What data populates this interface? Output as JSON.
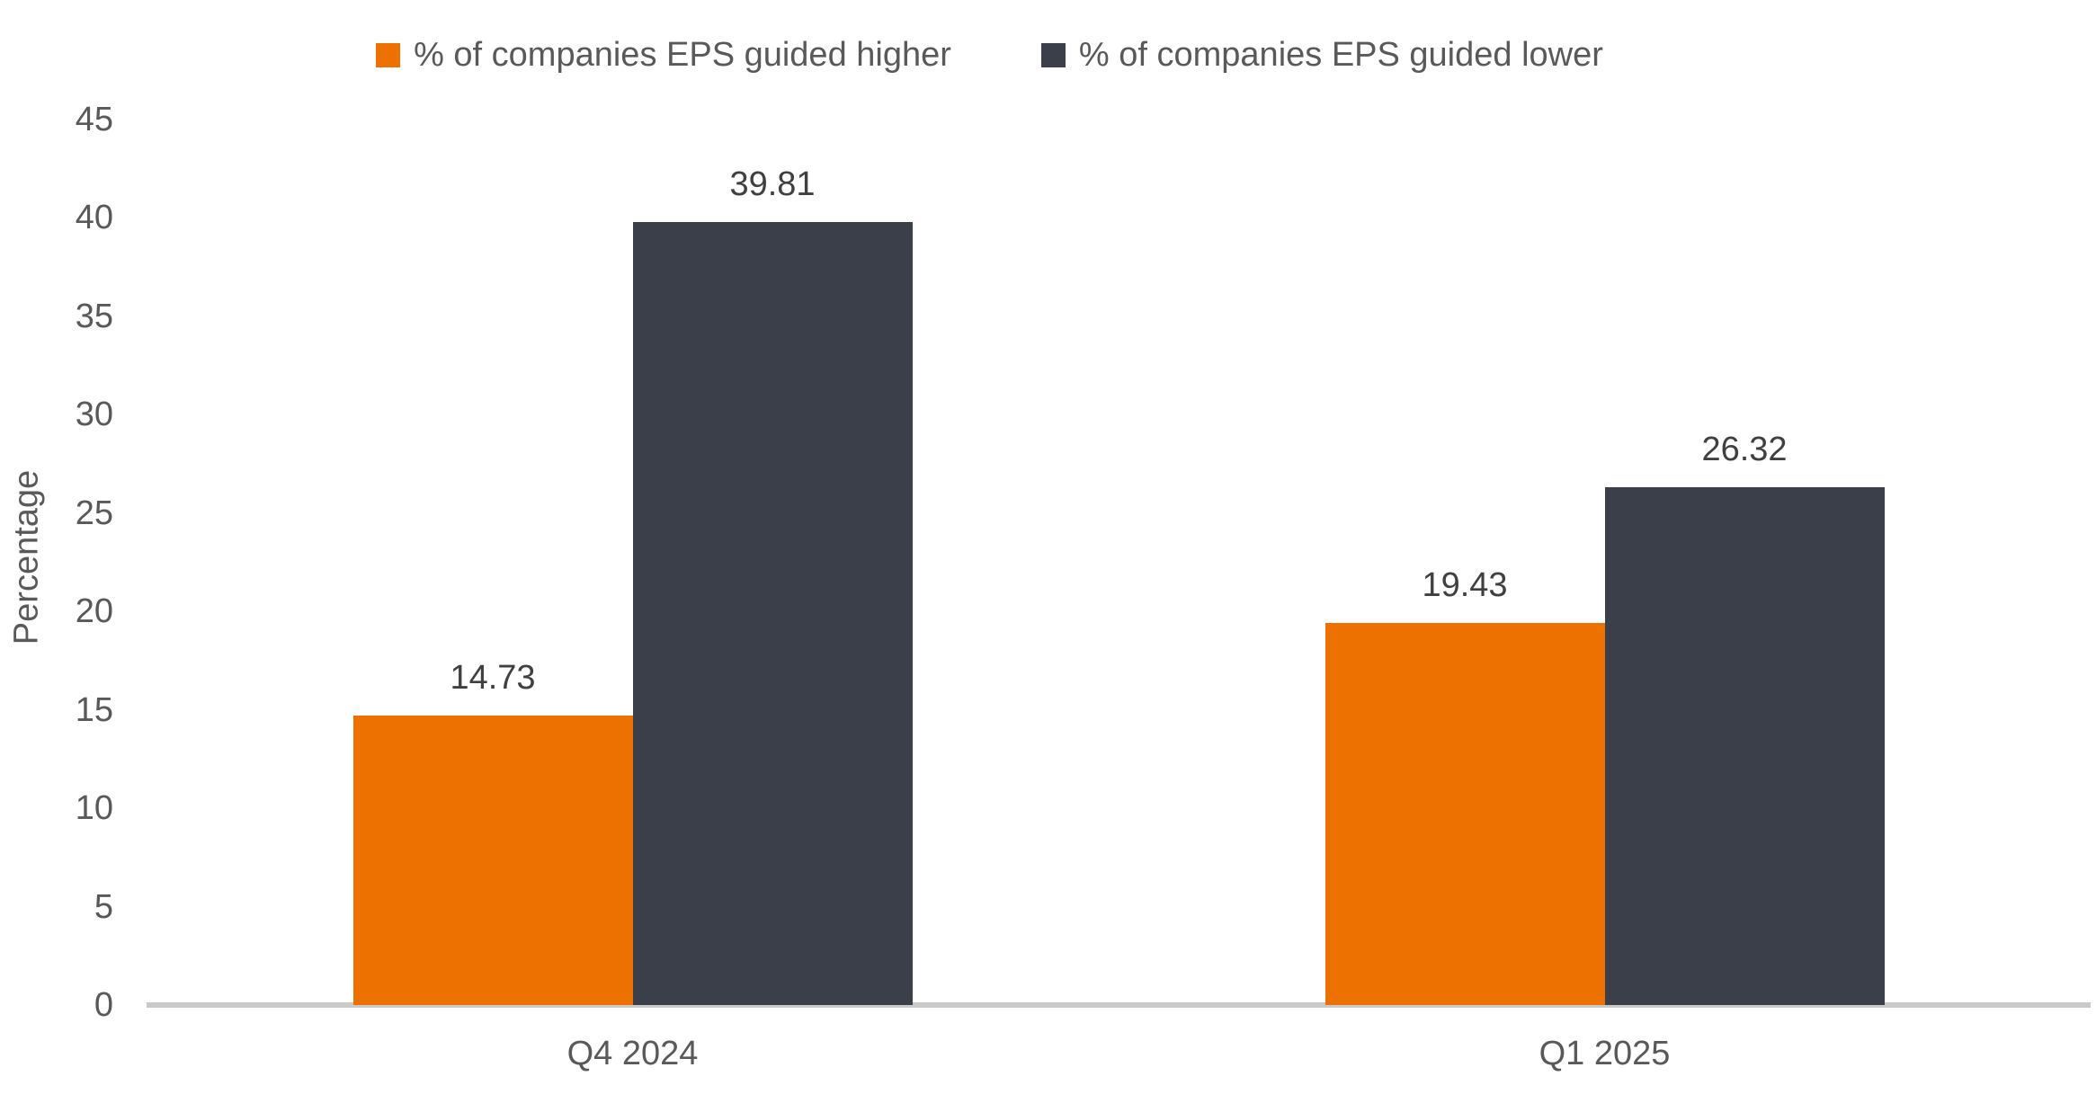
{
  "chart_data": {
    "type": "bar",
    "title": "",
    "xlabel": "",
    "ylabel": "Percentage",
    "categories": [
      "Q4 2024",
      "Q1 2025"
    ],
    "series": [
      {
        "name": "% of companies EPS guided higher",
        "color": "#ED7100",
        "values": [
          14.73,
          19.43
        ],
        "labels": [
          "14.73",
          "19.43"
        ]
      },
      {
        "name": "% of companies EPS guided lower",
        "color": "#3A3F4A",
        "values": [
          39.81,
          26.32
        ],
        "labels": [
          "39.81",
          "26.32"
        ]
      }
    ],
    "ylim": [
      0,
      45
    ],
    "ytick_step": 5,
    "yticks": [
      0,
      5,
      10,
      15,
      20,
      25,
      30,
      35,
      40,
      45
    ],
    "grid": false,
    "legend_position": "top"
  },
  "colors": {
    "background": "#FFFFFF",
    "axis_line": "#C9C9C9",
    "tick_text": "#595959",
    "value_label_text": "#404040",
    "series_higher": "#ED7100",
    "series_lower": "#3A3F4A"
  }
}
